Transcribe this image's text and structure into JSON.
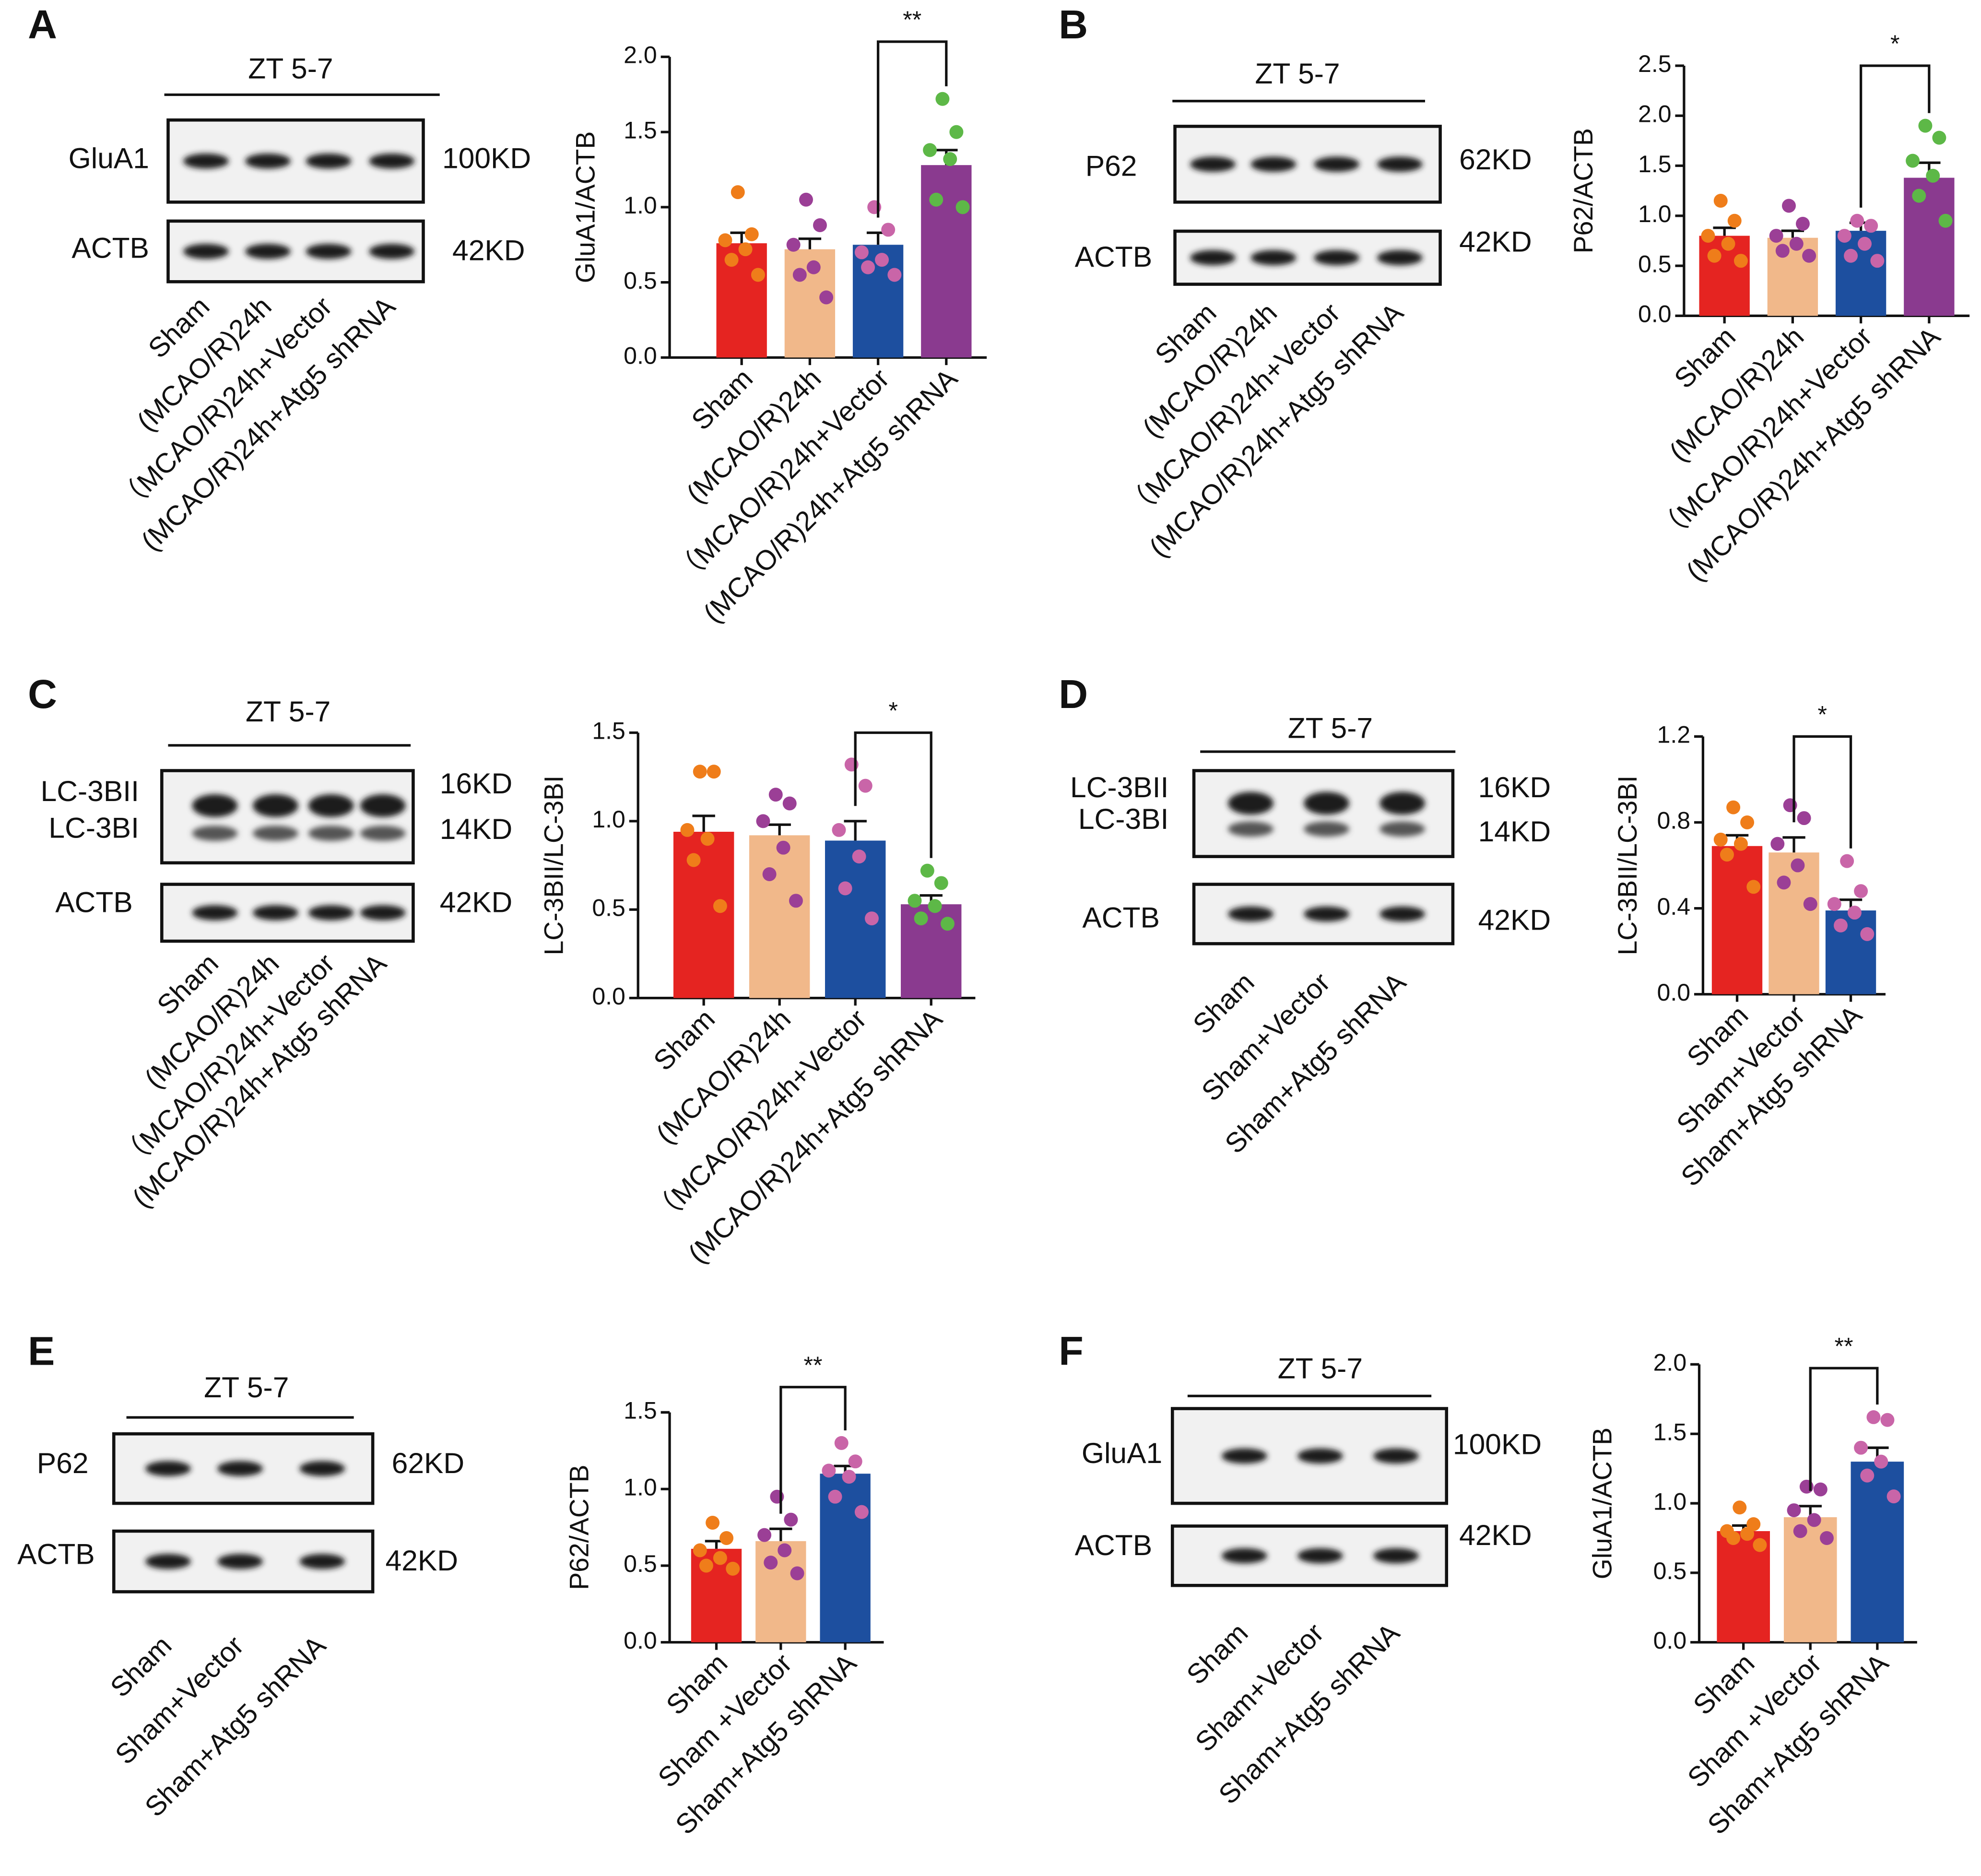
{
  "chart_data": [
    {
      "type": "bar",
      "panel": "A",
      "ylabel": "GluA1/ACTB",
      "blot": {
        "title": "ZT 5-7",
        "rows": [
          {
            "labels": [
              "GluA1"
            ],
            "sizes": [
              "100KD"
            ]
          },
          {
            "labels": [
              "ACTB"
            ],
            "sizes": [
              "42KD"
            ]
          }
        ],
        "lanes": [
          "Sham",
          "(MCAO/R)24h",
          "（MCAO/R)24h+Vector",
          "(MCAO/R)24h+Atg5 shRNA"
        ]
      },
      "categories": [
        "Sham",
        "(MCAO/R)24h",
        "（MCAO/R)24h+Vector",
        "(MCAO/R)24h+Atg5 shRNA"
      ],
      "values": [
        0.76,
        0.72,
        0.75,
        1.28
      ],
      "errors": [
        0.07,
        0.07,
        0.08,
        0.1
      ],
      "points": [
        [
          1.1,
          0.82,
          0.78,
          0.72,
          0.65,
          0.55
        ],
        [
          1.05,
          0.88,
          0.75,
          0.6,
          0.55,
          0.4
        ],
        [
          1.0,
          0.85,
          0.7,
          0.65,
          0.6,
          0.55
        ],
        [
          1.72,
          1.5,
          1.38,
          1.32,
          1.05,
          1.0
        ]
      ],
      "colors": [
        "#e52421",
        "#f1b88a",
        "#1d4f9f",
        "#8a3a8f"
      ],
      "point_colors": [
        "#ef7d1a",
        "#9b3f96",
        "#c965a8",
        "#5db847"
      ],
      "ylim": [
        0,
        2.0
      ],
      "yticks": [
        {
          "value": 0,
          "label": "0.0"
        },
        {
          "value": 0.5,
          "label": "0.5"
        },
        {
          "value": 1.0,
          "label": "1.0"
        },
        {
          "value": 1.5,
          "label": "1.5"
        },
        {
          "value": 2.0,
          "label": "2.0"
        }
      ],
      "significance": {
        "label": "**",
        "between": [
          "（MCAO/R)24h+Vector",
          "(MCAO/R)24h+Atg5 shRNA"
        ]
      }
    },
    {
      "type": "bar",
      "panel": "B",
      "ylabel": "P62/ACTB",
      "blot": {
        "title": "ZT 5-7",
        "rows": [
          {
            "labels": [
              "P62"
            ],
            "sizes": [
              "62KD"
            ]
          },
          {
            "labels": [
              "ACTB"
            ],
            "sizes": [
              "42KD"
            ]
          }
        ],
        "lanes": [
          "Sham",
          "(MCAO/R)24h",
          "（MCAO/R)24h+Vector",
          "(MCAO/R)24h+Atg5 shRNA"
        ]
      },
      "categories": [
        "Sham",
        "(MCAO/R)24h",
        "（MCAO/R)24h+Vector",
        "(MCAO/R)24h+Atg5 shRNA"
      ],
      "values": [
        0.8,
        0.78,
        0.85,
        1.38
      ],
      "errors": [
        0.08,
        0.07,
        0.08,
        0.15
      ],
      "points": [
        [
          1.15,
          0.95,
          0.8,
          0.72,
          0.6,
          0.55
        ],
        [
          1.1,
          0.92,
          0.8,
          0.72,
          0.65,
          0.6
        ],
        [
          0.95,
          0.9,
          0.8,
          0.72,
          0.6,
          0.55
        ],
        [
          1.9,
          1.78,
          1.55,
          1.4,
          1.2,
          0.95
        ]
      ],
      "colors": [
        "#e52421",
        "#f1b88a",
        "#1d4f9f",
        "#8a3a8f"
      ],
      "point_colors": [
        "#ef7d1a",
        "#9b3f96",
        "#c965a8",
        "#5db847"
      ],
      "ylim": [
        0,
        2.5
      ],
      "yticks": [
        {
          "value": 0,
          "label": "0.0"
        },
        {
          "value": 0.5,
          "label": "0.5"
        },
        {
          "value": 1.0,
          "label": "1.0"
        },
        {
          "value": 1.5,
          "label": "1.5"
        },
        {
          "value": 2.0,
          "label": "2.0"
        },
        {
          "value": 2.5,
          "label": "2.5"
        }
      ],
      "significance": {
        "label": "*",
        "between": [
          "（MCAO/R)24h+Vector",
          "(MCAO/R)24h+Atg5 shRNA"
        ]
      }
    },
    {
      "type": "bar",
      "panel": "C",
      "ylabel": "LC-3BII/LC-3BI",
      "blot": {
        "title": "ZT 5-7",
        "rows": [
          {
            "labels": [
              "LC-3BII",
              "LC-3BI"
            ],
            "sizes": [
              "16KD",
              "14KD"
            ]
          },
          {
            "labels": [
              "ACTB"
            ],
            "sizes": [
              "42KD"
            ]
          }
        ],
        "lanes": [
          "Sham",
          "(MCAO/R)24h",
          "（MCAO/R)24h+Vector",
          "(MCAO/R)24h+Atg5 shRNA"
        ]
      },
      "categories": [
        "Sham",
        "(MCAO/R)24h",
        "（MCAO/R)24h+Vector",
        "(MCAO/R)24h+Atg5 shRNA"
      ],
      "values": [
        0.94,
        0.92,
        0.89,
        0.53
      ],
      "errors": [
        0.09,
        0.06,
        0.11,
        0.05
      ],
      "points": [
        [
          1.28,
          1.28,
          0.95,
          0.9,
          0.78,
          0.52
        ],
        [
          1.15,
          1.1,
          1.0,
          0.85,
          0.7,
          0.55
        ],
        [
          1.32,
          1.2,
          0.95,
          0.8,
          0.62,
          0.45
        ],
        [
          0.72,
          0.65,
          0.55,
          0.52,
          0.45,
          0.42
        ]
      ],
      "colors": [
        "#e52421",
        "#f1b88a",
        "#1d4f9f",
        "#8a3a8f"
      ],
      "point_colors": [
        "#ef7d1a",
        "#9b3f96",
        "#c965a8",
        "#5db847"
      ],
      "ylim": [
        0,
        1.5
      ],
      "yticks": [
        {
          "value": 0,
          "label": "0.0"
        },
        {
          "value": 0.5,
          "label": "0.5"
        },
        {
          "value": 1.0,
          "label": "1.0"
        },
        {
          "value": 1.5,
          "label": "1.5"
        }
      ],
      "significance": {
        "label": "*",
        "between": [
          "（MCAO/R)24h+Vector",
          "(MCAO/R)24h+Atg5 shRNA"
        ]
      }
    },
    {
      "type": "bar",
      "panel": "D",
      "ylabel": "LC-3BII/LC-3BI",
      "blot": {
        "title": "ZT 5-7",
        "rows": [
          {
            "labels": [
              "LC-3BII",
              "LC-3BI"
            ],
            "sizes": [
              "16KD",
              "14KD"
            ]
          },
          {
            "labels": [
              "ACTB"
            ],
            "sizes": [
              "42KD"
            ]
          }
        ],
        "lanes": [
          "Sham",
          "Sham+Vector",
          "Sham+Atg5 shRNA"
        ]
      },
      "categories": [
        "Sham",
        "Sham+Vector",
        "Sham+Atg5 shRNA"
      ],
      "values": [
        0.69,
        0.66,
        0.39
      ],
      "errors": [
        0.05,
        0.07,
        0.05
      ],
      "points": [
        [
          0.87,
          0.8,
          0.72,
          0.7,
          0.65,
          0.5
        ],
        [
          0.88,
          0.82,
          0.7,
          0.6,
          0.52,
          0.42
        ],
        [
          0.62,
          0.48,
          0.42,
          0.38,
          0.32,
          0.28
        ]
      ],
      "colors": [
        "#e52421",
        "#f1b88a",
        "#1d4f9f"
      ],
      "point_colors": [
        "#ef7d1a",
        "#9b3f96",
        "#c965a8"
      ],
      "ylim": [
        0,
        1.2
      ],
      "yticks": [
        {
          "value": 0,
          "label": "0.0"
        },
        {
          "value": 0.4,
          "label": "0.4"
        },
        {
          "value": 0.8,
          "label": "0.8"
        },
        {
          "value": 1.2,
          "label": "1.2"
        }
      ],
      "significance": {
        "label": "*",
        "between": [
          "Sham+Vector",
          "Sham+Atg5 shRNA"
        ]
      }
    },
    {
      "type": "bar",
      "panel": "E",
      "ylabel": "P62/ACTB",
      "blot": {
        "title": "ZT 5-7",
        "rows": [
          {
            "labels": [
              "P62"
            ],
            "sizes": [
              "62KD"
            ]
          },
          {
            "labels": [
              "ACTB"
            ],
            "sizes": [
              "42KD"
            ]
          }
        ],
        "lanes": [
          "Sham",
          "Sham+Vector",
          "Sham+Atg5 shRNA"
        ]
      },
      "categories": [
        "Sham",
        "Sham +Vector",
        "Sham+Atg5 shRNA"
      ],
      "values": [
        0.61,
        0.66,
        1.1
      ],
      "errors": [
        0.05,
        0.08,
        0.05
      ],
      "points": [
        [
          0.78,
          0.68,
          0.6,
          0.55,
          0.5,
          0.48
        ],
        [
          0.95,
          0.8,
          0.7,
          0.6,
          0.52,
          0.45
        ],
        [
          1.3,
          1.18,
          1.12,
          1.08,
          0.95,
          0.85
        ]
      ],
      "colors": [
        "#e52421",
        "#f1b88a",
        "#1d4f9f"
      ],
      "point_colors": [
        "#ef7d1a",
        "#9b3f96",
        "#c965a8"
      ],
      "ylim": [
        0,
        1.5
      ],
      "yticks": [
        {
          "value": 0,
          "label": "0.0"
        },
        {
          "value": 0.5,
          "label": "0.5"
        },
        {
          "value": 1.0,
          "label": "1.0"
        },
        {
          "value": 1.5,
          "label": "1.5"
        }
      ],
      "significance": {
        "label": "**",
        "between": [
          "Sham +Vector",
          "Sham+Atg5 shRNA"
        ]
      }
    },
    {
      "type": "bar",
      "panel": "F",
      "ylabel": "GluA1/ACTB",
      "blot": {
        "title": "ZT 5-7",
        "rows": [
          {
            "labels": [
              "GluA1"
            ],
            "sizes": [
              "100KD"
            ]
          },
          {
            "labels": [
              "ACTB"
            ],
            "sizes": [
              "42KD"
            ]
          }
        ],
        "lanes": [
          "Sham",
          "Sham+Vector",
          "Sham+Atg5 shRNA"
        ]
      },
      "categories": [
        "Sham",
        "Sham +Vector",
        "Sham+Atg5 shRNA"
      ],
      "values": [
        0.8,
        0.9,
        1.3
      ],
      "errors": [
        0.04,
        0.08,
        0.1
      ],
      "points": [
        [
          0.97,
          0.85,
          0.8,
          0.78,
          0.75,
          0.7
        ],
        [
          1.12,
          1.1,
          0.95,
          0.88,
          0.8,
          0.75
        ],
        [
          1.62,
          1.6,
          1.4,
          1.3,
          1.2,
          1.05
        ]
      ],
      "colors": [
        "#e52421",
        "#f1b88a",
        "#1d4f9f"
      ],
      "point_colors": [
        "#ef7d1a",
        "#9b3f96",
        "#c965a8"
      ],
      "ylim": [
        0,
        2.0
      ],
      "yticks": [
        {
          "value": 0,
          "label": "0.0"
        },
        {
          "value": 0.5,
          "label": "0.5"
        },
        {
          "value": 1.0,
          "label": "1.0"
        },
        {
          "value": 1.5,
          "label": "1.5"
        },
        {
          "value": 2.0,
          "label": "2.0"
        }
      ],
      "significance": {
        "label": "**",
        "between": [
          "Sham +Vector",
          "Sham+Atg5 shRNA"
        ]
      }
    }
  ]
}
